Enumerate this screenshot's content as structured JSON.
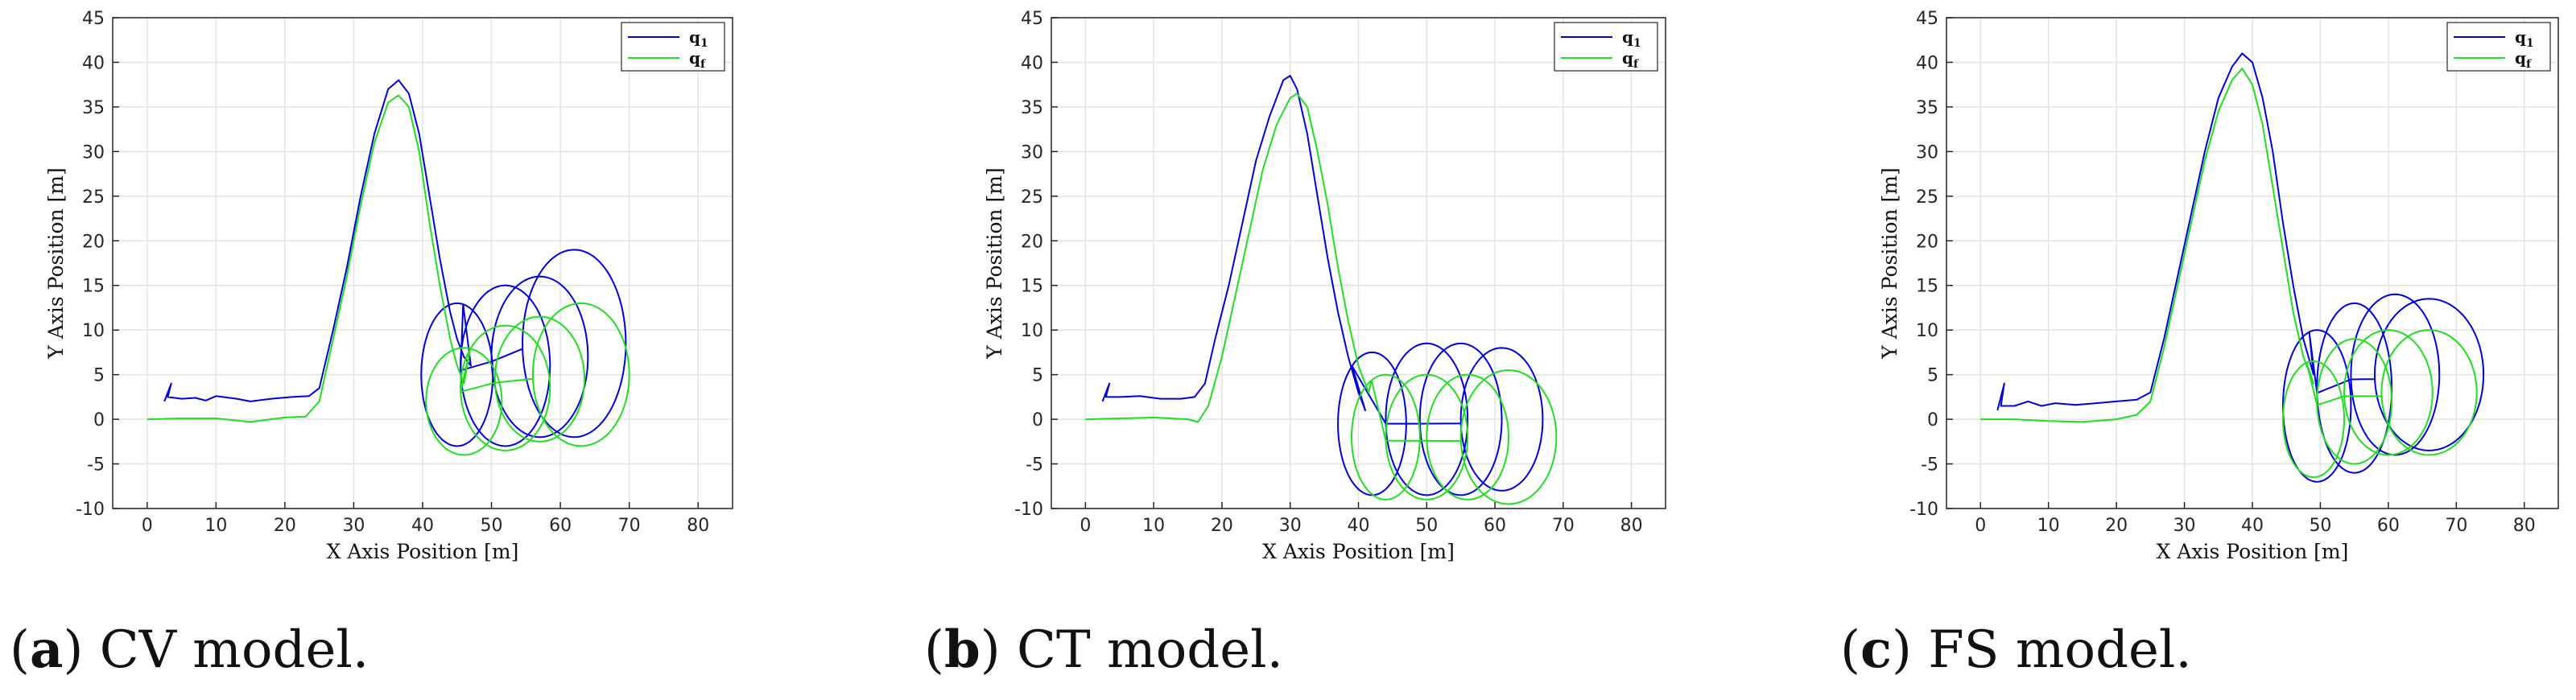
{
  "colors": {
    "q1": "#0000dd",
    "qf": "#22dd22",
    "grid": "#e3e3e3",
    "axis": "#262626"
  },
  "chart_data": [
    {
      "type": "line",
      "caption_label": "a",
      "caption_text": " CV model.",
      "xlabel": "X Axis Position [m]",
      "ylabel": "Y Axis Position [m]",
      "xlim": [
        -5,
        85
      ],
      "ylim": [
        -10,
        45
      ],
      "xticks": [
        "0",
        "10",
        "20",
        "30",
        "40",
        "50",
        "60",
        "70",
        "80"
      ],
      "yticks": [
        "-10",
        "-5",
        "0",
        "5",
        "10",
        "15",
        "20",
        "25",
        "30",
        "35",
        "40",
        "45"
      ],
      "grid": true,
      "legend_position": "top-right",
      "series": [
        {
          "name": "q1",
          "legend_label": "q",
          "legend_sub": "1",
          "path": [
            [
              2.5,
              2
            ],
            [
              3,
              3
            ],
            [
              3.5,
              4
            ],
            [
              3,
              2.5
            ],
            [
              5,
              2.3
            ],
            [
              7,
              2.4
            ],
            [
              8.5,
              2.1
            ],
            [
              10,
              2.6
            ],
            [
              13,
              2.3
            ],
            [
              15,
              2
            ],
            [
              18,
              2.3
            ],
            [
              21,
              2.5
            ],
            [
              23.5,
              2.6
            ],
            [
              25,
              3.5
            ],
            [
              27,
              10
            ],
            [
              29,
              17
            ],
            [
              31,
              25
            ],
            [
              33,
              32
            ],
            [
              35,
              37
            ],
            [
              36.5,
              38
            ],
            [
              38,
              36.5
            ],
            [
              39.5,
              32
            ],
            [
              41,
              25
            ],
            [
              42.5,
              18
            ],
            [
              44,
              12
            ],
            [
              45,
              9
            ],
            [
              46,
              7
            ],
            [
              47,
              6
            ]
          ],
          "loops": [
            {
              "cx": 45,
              "cy": 5,
              "rx": 5.2,
              "ry": 8,
              "start": 1.4,
              "turns": 1.0
            },
            {
              "cx": 52,
              "cy": 6,
              "rx": 6.5,
              "ry": 9,
              "start": 3.2,
              "turns": 1.0
            },
            {
              "cx": 57,
              "cy": 7,
              "rx": 7,
              "ry": 9,
              "start": 3.2,
              "turns": 1.0
            },
            {
              "cx": 62,
              "cy": 8.5,
              "rx": 7.5,
              "ry": 10.5,
              "start": 3.2,
              "turns": 1.0
            }
          ]
        },
        {
          "name": "qf",
          "legend_label": "q",
          "legend_sub": "f",
          "path": [
            [
              0,
              0
            ],
            [
              5,
              0.1
            ],
            [
              10,
              0.1
            ],
            [
              15,
              -0.3
            ],
            [
              20,
              0.2
            ],
            [
              23,
              0.3
            ],
            [
              25,
              2
            ],
            [
              27,
              9
            ],
            [
              29,
              16
            ],
            [
              31,
              24
            ],
            [
              33,
              31
            ],
            [
              35,
              35.5
            ],
            [
              36.5,
              36.3
            ],
            [
              38,
              35
            ],
            [
              39.5,
              30
            ],
            [
              41,
              22
            ],
            [
              42.5,
              15
            ],
            [
              44,
              9
            ],
            [
              45,
              6
            ],
            [
              46,
              4
            ]
          ],
          "loops": [
            {
              "cx": 46,
              "cy": 2,
              "rx": 5.5,
              "ry": 6,
              "start": 1.4,
              "turns": 1.0
            },
            {
              "cx": 52,
              "cy": 3.5,
              "rx": 6.5,
              "ry": 7,
              "start": 3.2,
              "turns": 1.0
            },
            {
              "cx": 57,
              "cy": 4.5,
              "rx": 6.5,
              "ry": 7,
              "start": 3.2,
              "turns": 1.0
            },
            {
              "cx": 63,
              "cy": 5,
              "rx": 7,
              "ry": 8,
              "start": 3.2,
              "turns": 1.0
            }
          ]
        }
      ]
    },
    {
      "type": "line",
      "caption_label": "b",
      "caption_text": " CT model.",
      "xlabel": "X Axis Position [m]",
      "ylabel": "Y Axis Position [m]",
      "xlim": [
        -5,
        85
      ],
      "ylim": [
        -10,
        45
      ],
      "xticks": [
        "0",
        "10",
        "20",
        "30",
        "40",
        "50",
        "60",
        "70",
        "80"
      ],
      "yticks": [
        "-10",
        "-5",
        "0",
        "5",
        "10",
        "15",
        "20",
        "25",
        "30",
        "35",
        "40",
        "45"
      ],
      "grid": true,
      "legend_position": "top-right",
      "series": [
        {
          "name": "q1",
          "legend_label": "q",
          "legend_sub": "1",
          "path": [
            [
              2.5,
              2
            ],
            [
              3,
              3
            ],
            [
              3.5,
              4
            ],
            [
              3,
              2.5
            ],
            [
              5,
              2.5
            ],
            [
              8,
              2.6
            ],
            [
              11,
              2.3
            ],
            [
              14,
              2.3
            ],
            [
              16,
              2.5
            ],
            [
              17.5,
              4
            ],
            [
              19,
              9
            ],
            [
              21,
              15
            ],
            [
              23,
              22
            ],
            [
              25,
              29
            ],
            [
              27,
              34
            ],
            [
              29,
              38
            ],
            [
              30,
              38.5
            ],
            [
              31,
              37
            ],
            [
              32.5,
              32
            ],
            [
              34,
              25
            ],
            [
              35.5,
              18
            ],
            [
              37,
              12
            ],
            [
              38.5,
              7
            ],
            [
              40,
              3
            ],
            [
              41,
              1
            ]
          ],
          "loops": [
            {
              "cx": 42,
              "cy": -0.5,
              "rx": 5,
              "ry": 8,
              "start": 2.2,
              "turns": 1.0
            },
            {
              "cx": 50,
              "cy": 0,
              "rx": 6,
              "ry": 8.5,
              "start": 3.2,
              "turns": 1.0
            },
            {
              "cx": 55,
              "cy": 0,
              "rx": 6,
              "ry": 8.5,
              "start": 3.2,
              "turns": 1.0
            },
            {
              "cx": 61,
              "cy": 0,
              "rx": 6,
              "ry": 8,
              "start": 3.2,
              "turns": 1.0
            }
          ]
        },
        {
          "name": "qf",
          "legend_label": "q",
          "legend_sub": "f",
          "path": [
            [
              0,
              0
            ],
            [
              5,
              0.1
            ],
            [
              10,
              0.2
            ],
            [
              15,
              0
            ],
            [
              16.5,
              -0.3
            ],
            [
              18,
              1.5
            ],
            [
              20,
              7
            ],
            [
              22,
              14
            ],
            [
              24,
              21
            ],
            [
              26,
              28
            ],
            [
              28,
              33
            ],
            [
              30,
              36
            ],
            [
              31,
              36.5
            ],
            [
              32.5,
              35
            ],
            [
              34,
              30
            ],
            [
              35.5,
              24
            ],
            [
              37,
              17
            ],
            [
              38.5,
              11
            ],
            [
              40,
              6
            ],
            [
              41.5,
              3
            ]
          ],
          "loops": [
            {
              "cx": 44,
              "cy": -2,
              "rx": 5,
              "ry": 7,
              "start": 2.0,
              "turns": 1.0
            },
            {
              "cx": 50,
              "cy": -2,
              "rx": 6,
              "ry": 7,
              "start": 3.2,
              "turns": 1.0
            },
            {
              "cx": 56,
              "cy": -2,
              "rx": 6,
              "ry": 7,
              "start": 3.2,
              "turns": 1.0
            },
            {
              "cx": 62,
              "cy": -2,
              "rx": 7,
              "ry": 7.5,
              "start": 3.2,
              "turns": 1.0
            }
          ]
        }
      ]
    },
    {
      "type": "line",
      "caption_label": "c",
      "caption_text": " FS model.",
      "xlabel": "X Axis Position [m]",
      "ylabel": "Y Axis Position [m]",
      "xlim": [
        -5,
        85
      ],
      "ylim": [
        -10,
        45
      ],
      "xticks": [
        "0",
        "10",
        "20",
        "30",
        "40",
        "50",
        "60",
        "70",
        "80"
      ],
      "yticks": [
        "-10",
        "-5",
        "0",
        "5",
        "10",
        "15",
        "20",
        "25",
        "30",
        "35",
        "40",
        "45"
      ],
      "grid": true,
      "legend_position": "top-right",
      "series": [
        {
          "name": "q1",
          "legend_label": "q",
          "legend_sub": "1",
          "path": [
            [
              2.5,
              1
            ],
            [
              3,
              2.5
            ],
            [
              3.5,
              4
            ],
            [
              3,
              1.5
            ],
            [
              5,
              1.5
            ],
            [
              7,
              2
            ],
            [
              9,
              1.5
            ],
            [
              11,
              1.8
            ],
            [
              14,
              1.6
            ],
            [
              17,
              1.8
            ],
            [
              20,
              2
            ],
            [
              23,
              2.2
            ],
            [
              25,
              3
            ],
            [
              27,
              9
            ],
            [
              29,
              16
            ],
            [
              31,
              23
            ],
            [
              33,
              30
            ],
            [
              35,
              36
            ],
            [
              37,
              39.5
            ],
            [
              38.5,
              41
            ],
            [
              40,
              40
            ],
            [
              41.5,
              36
            ],
            [
              43,
              30
            ],
            [
              44.5,
              22
            ],
            [
              46,
              15
            ],
            [
              47.5,
              9
            ],
            [
              49,
              5
            ]
          ],
          "loops": [
            {
              "cx": 49.5,
              "cy": 1.5,
              "rx": 5,
              "ry": 8.5,
              "start": 1.8,
              "turns": 1.0
            },
            {
              "cx": 55,
              "cy": 3.5,
              "rx": 5.5,
              "ry": 9.5,
              "start": 3.2,
              "turns": 1.0
            },
            {
              "cx": 61,
              "cy": 5,
              "rx": 6.5,
              "ry": 9,
              "start": 3.2,
              "turns": 1.0
            },
            {
              "cx": 66,
              "cy": 5,
              "rx": 8,
              "ry": 8.5,
              "start": 3.2,
              "turns": 1.0
            }
          ]
        },
        {
          "name": "qf",
          "legend_label": "q",
          "legend_sub": "f",
          "path": [
            [
              0,
              0
            ],
            [
              5,
              0
            ],
            [
              10,
              -0.2
            ],
            [
              15,
              -0.3
            ],
            [
              20,
              0
            ],
            [
              23,
              0.5
            ],
            [
              25,
              2
            ],
            [
              27,
              8
            ],
            [
              29,
              15
            ],
            [
              31,
              22
            ],
            [
              33,
              29
            ],
            [
              35,
              34.5
            ],
            [
              37,
              38
            ],
            [
              38.5,
              39.3
            ],
            [
              40,
              37.5
            ],
            [
              41.5,
              33
            ],
            [
              43,
              26
            ],
            [
              44.5,
              19
            ],
            [
              46,
              12
            ],
            [
              47.5,
              7
            ],
            [
              49,
              4
            ]
          ],
          "loops": [
            {
              "cx": 49,
              "cy": 0,
              "rx": 4.5,
              "ry": 6.5,
              "start": 1.8,
              "turns": 1.0
            },
            {
              "cx": 55,
              "cy": 2,
              "rx": 5.5,
              "ry": 7,
              "start": 3.2,
              "turns": 1.0
            },
            {
              "cx": 60,
              "cy": 3,
              "rx": 6.5,
              "ry": 7,
              "start": 3.2,
              "turns": 1.0
            },
            {
              "cx": 66,
              "cy": 3,
              "rx": 7,
              "ry": 7,
              "start": 3.2,
              "turns": 1.0
            }
          ]
        }
      ]
    }
  ]
}
